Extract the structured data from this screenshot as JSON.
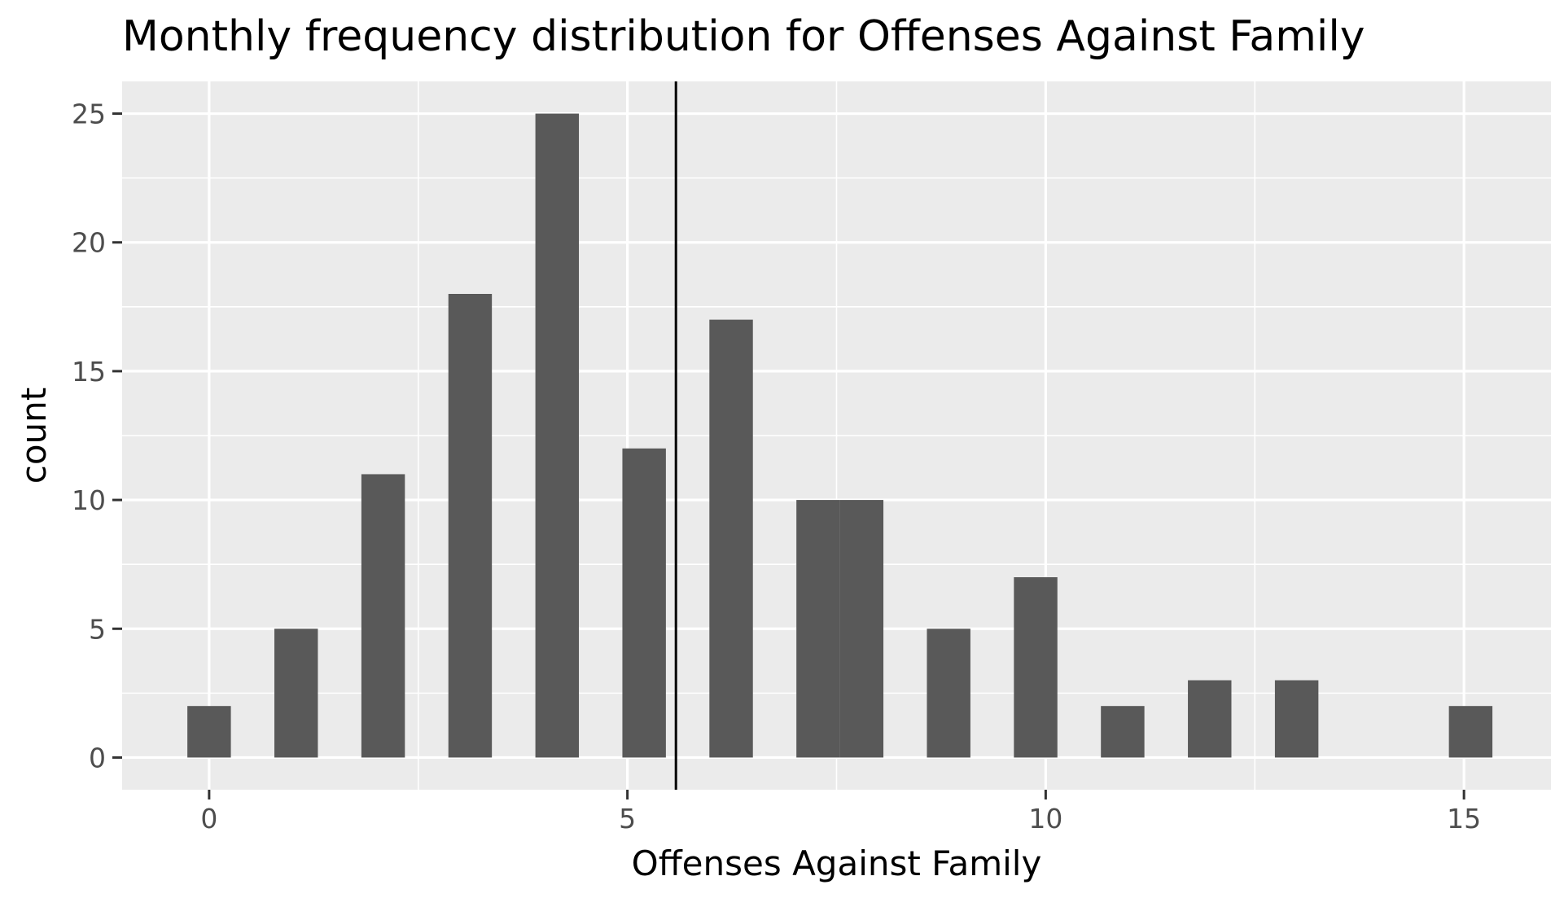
{
  "chart_data": {
    "type": "bar",
    "title": "Monthly frequency distribution for Offenses Against Family",
    "xlabel": "Offenses Against Family",
    "ylabel": "count",
    "xlim": [
      -1.04,
      16.04
    ],
    "ylim": [
      -1.25,
      26.25
    ],
    "x_ticks": [
      0,
      5,
      10,
      15
    ],
    "y_ticks": [
      0,
      5,
      10,
      15,
      20,
      25
    ],
    "x_tick_labels": [
      "0",
      "5",
      "10",
      "15"
    ],
    "y_tick_labels": [
      "0",
      "5",
      "10",
      "15",
      "20",
      "25"
    ],
    "bin_width": 0.52,
    "bars": [
      {
        "x": 0,
        "count": 2
      },
      {
        "x": 1.04,
        "count": 5
      },
      {
        "x": 2.08,
        "count": 11
      },
      {
        "x": 3.12,
        "count": 18
      },
      {
        "x": 4.16,
        "count": 25
      },
      {
        "x": 5.2,
        "count": 12
      },
      {
        "x": 6.24,
        "count": 17
      },
      {
        "x": 7.28,
        "count": 10
      },
      {
        "x": 7.8,
        "count": 10
      },
      {
        "x": 8.84,
        "count": 5
      },
      {
        "x": 9.88,
        "count": 7
      },
      {
        "x": 10.92,
        "count": 2
      },
      {
        "x": 11.96,
        "count": 3
      },
      {
        "x": 13.0,
        "count": 3
      },
      {
        "x": 15.08,
        "count": 2
      }
    ],
    "mean_line_x": 5.58,
    "grid": true,
    "colors": {
      "panel_background": "#ebebeb",
      "grid": "#ffffff",
      "bar_fill": "#595959",
      "mean_line": "#000000",
      "tick_marks": "#333333"
    }
  }
}
